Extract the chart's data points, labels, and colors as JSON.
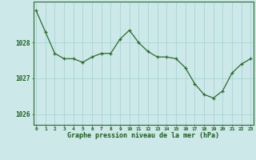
{
  "x": [
    0,
    1,
    2,
    3,
    4,
    5,
    6,
    7,
    8,
    9,
    10,
    11,
    12,
    13,
    14,
    15,
    16,
    17,
    18,
    19,
    20,
    21,
    22,
    23
  ],
  "y": [
    1028.9,
    1028.3,
    1027.7,
    1027.55,
    1027.55,
    1027.45,
    1027.6,
    1027.7,
    1027.7,
    1028.1,
    1028.35,
    1028.0,
    1027.75,
    1027.6,
    1027.6,
    1027.55,
    1027.3,
    1026.85,
    1026.55,
    1026.45,
    1026.65,
    1027.15,
    1027.4,
    1027.55
  ],
  "line_color": "#2d6a2d",
  "marker_color": "#2d6a2d",
  "bg_color": "#cce8e8",
  "grid_color": "#aad4d4",
  "xlabel": "Graphe pression niveau de la mer (hPa)",
  "xlabel_color": "#1a5c1a",
  "tick_color": "#1a5c1a",
  "ylim": [
    1025.7,
    1029.15
  ],
  "yticks": [
    1026,
    1027,
    1028
  ],
  "xticks": [
    0,
    1,
    2,
    3,
    4,
    5,
    6,
    7,
    8,
    9,
    10,
    11,
    12,
    13,
    14,
    15,
    16,
    17,
    18,
    19,
    20,
    21,
    22,
    23
  ],
  "border_color": "#2d6a2d"
}
